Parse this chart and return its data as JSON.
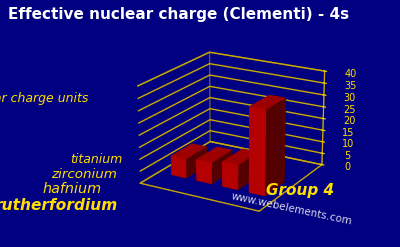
{
  "title": "Effective nuclear charge (Clementi) - 4s",
  "background_color": "#000080",
  "bar_color_side": "#cc0000",
  "bar_color_top": "#ff3300",
  "bar_color_dark": "#880000",
  "grid_color": "#ccaa00",
  "text_color": "#ffdd00",
  "white_text": "#ffffff",
  "ylabel": "nuclear charge units",
  "xlabel": "Group 4",
  "categories": [
    "titanium",
    "zirconium",
    "hafnium",
    "rutherfordium"
  ],
  "values": [
    8.14,
    8.99,
    10.43,
    35.0
  ],
  "yticks": [
    0,
    5,
    10,
    15,
    20,
    25,
    30,
    35,
    40
  ],
  "ylim": [
    0,
    40
  ],
  "watermark": "www.webelements.com",
  "title_fontsize": 11,
  "label_fontsize": 8,
  "tick_fontsize": 7
}
